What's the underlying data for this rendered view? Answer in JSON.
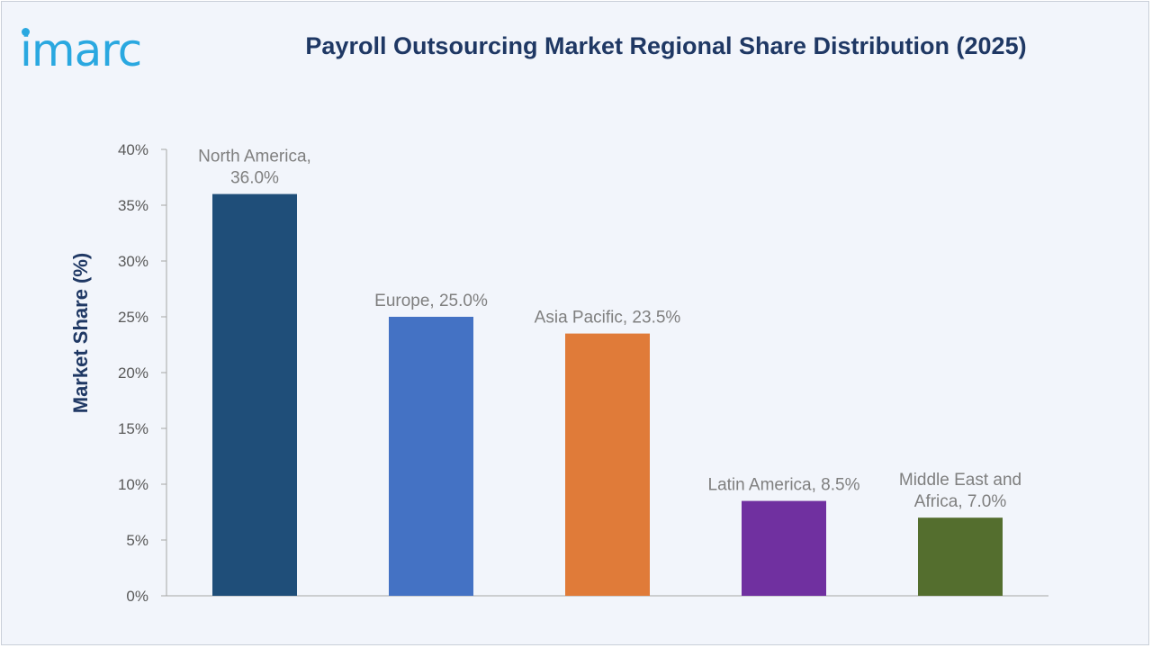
{
  "brand": {
    "logo_text": "imarc",
    "accent": "#2aa8e0"
  },
  "chart_data": {
    "type": "bar",
    "title": "Payroll Outsourcing Market Regional Share Distribution (2025)",
    "xlabel": "",
    "ylabel": "Market Share (%)",
    "ylim": [
      0,
      40
    ],
    "yticks": [
      0,
      5,
      10,
      15,
      20,
      25,
      30,
      35,
      40
    ],
    "ytick_labels": [
      "0%",
      "5%",
      "10%",
      "15%",
      "20%",
      "25%",
      "30%",
      "35%",
      "40%"
    ],
    "grid": false,
    "legend": "none",
    "categories": [
      "North America",
      "Europe",
      "Asia Pacific",
      "Latin America",
      "Middle East and Africa"
    ],
    "values": [
      36.0,
      25.0,
      23.5,
      8.5,
      7.0
    ],
    "data_labels": [
      [
        "North America,",
        "36.0%"
      ],
      [
        "Europe, 25.0%"
      ],
      [
        "Asia Pacific, 23.5%"
      ],
      [
        "Latin America, 8.5%"
      ],
      [
        "Middle East and",
        "Africa, 7.0%"
      ]
    ],
    "colors": [
      "#1f4e79",
      "#4472c4",
      "#e07b39",
      "#7030a0",
      "#546e2e"
    ]
  }
}
